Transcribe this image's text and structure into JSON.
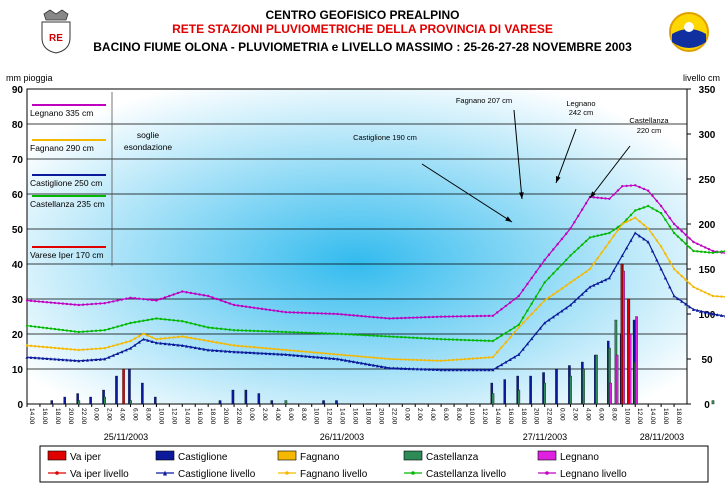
{
  "header": {
    "title": "CENTRO GEOFISICO PREALPINO",
    "subtitle": "RETE STAZIONI PLUVIOMETRICHE DELLA PROVINCIA DI VARESE",
    "subtitle2": "BACINO FIUME OLONA - PLUVIOMETRIA e LIVELLO MASSIMO :  25-26-27-28 NOVEMBRE 2003",
    "logo_left_text": "RE",
    "logo_left_color": "#cc0000"
  },
  "colors": {
    "varese": "#e00000",
    "castiglione": "#0a1a9a",
    "fagnano": "#f5b800",
    "castellanza": "#00b800",
    "legnano": "#c000c0",
    "castellanza_bar": "#2e8b57",
    "legnano_bar": "#e020e0",
    "plot_bg_center": "#33bbee",
    "plot_bg_edge": "#ffffff"
  },
  "chart_data": {
    "type": "bar+line",
    "ylabel_left": "mm pioggia",
    "ylabel_right": "livello cm",
    "ylim_left": [
      0,
      90
    ],
    "ylim_right": [
      0,
      350
    ],
    "yticks_left": [
      "0",
      "10",
      "20",
      "30",
      "40",
      "50",
      "60",
      "70",
      "80",
      "90"
    ],
    "yticks_right": [
      "0",
      "50",
      "100",
      "150",
      "200",
      "250",
      "300",
      "350"
    ],
    "x_ticks": [
      "14.00",
      "16.00",
      "18.00",
      "20.00",
      "22.00",
      "0.00",
      "2.00",
      "4.00",
      "6.00",
      "8.00",
      "10.00",
      "12.00",
      "14.00",
      "16.00",
      "18.00",
      "20.00",
      "22.00",
      "0.00",
      "2.00",
      "4.00",
      "6.00",
      "8.00",
      "10.00",
      "12.00",
      "14.00",
      "16.00",
      "18.00",
      "20.00",
      "22.00",
      "0.00",
      "2.00",
      "4.00",
      "6.00",
      "8.00",
      "10.00",
      "12.00",
      "14.00",
      "16.00",
      "18.00",
      "20.00",
      "22.00",
      "0.00",
      "2.00",
      "4.00",
      "6.00",
      "8.00",
      "10.00",
      "12.00",
      "14.00",
      "16.00",
      "18.00"
    ],
    "dates": [
      "25/11/2003",
      "26/11/2003",
      "27/11/2003",
      "28/11/2003"
    ],
    "thresholds": [
      {
        "label": "Legnano 335 cm",
        "level": 335,
        "series": "legnano"
      },
      {
        "label": "Fagnano 290 cm",
        "level": 290,
        "series": "fagnano"
      },
      {
        "label": "Castiglione 250 cm",
        "level": 250,
        "series": "castiglione"
      },
      {
        "label": "Castellanza 235 cm",
        "level": 235,
        "series": "castellanza"
      },
      {
        "label": "Varese Iper 170 cm",
        "level": 170,
        "series": "varese"
      }
    ],
    "soglie_label_1": "soglie",
    "soglie_label_2": "esondazione",
    "annotations": [
      {
        "text": "Fagnano 207 cm"
      },
      {
        "text_1": "Legnano",
        "text_2": "242 cm"
      },
      {
        "text_1": "Castellanza",
        "text_2": "220 cm"
      },
      {
        "text": "Castiglione 190 cm"
      }
    ],
    "level_series": {
      "legnano": {
        "name": "Legnano livello",
        "x": [
          0,
          8,
          12,
          16,
          20,
          24,
          28,
          32,
          40,
          48,
          56,
          64,
          72,
          76,
          80,
          84,
          87,
          90,
          92,
          94,
          96,
          98,
          100,
          103,
          106,
          110,
          112,
          116,
          120,
          126,
          130,
          136,
          142,
          148,
          154,
          158
        ],
        "y": [
          115,
          110,
          112,
          118,
          115,
          125,
          120,
          110,
          102,
          100,
          95,
          97,
          98,
          120,
          160,
          195,
          230,
          228,
          242,
          243,
          237,
          220,
          200,
          180,
          170,
          165,
          155,
          145,
          135,
          125,
          120,
          110,
          105,
          100,
          92,
          90
        ]
      },
      "fagnano": {
        "name": "Fagnano livello",
        "x": [
          0,
          8,
          12,
          16,
          18,
          20,
          24,
          28,
          32,
          40,
          48,
          56,
          64,
          72,
          76,
          80,
          84,
          87,
          90,
          92,
          94,
          96,
          98,
          100,
          103,
          106,
          110,
          112,
          116,
          120,
          126,
          130,
          136,
          142,
          148,
          154,
          158
        ],
        "y": [
          65,
          60,
          62,
          70,
          78,
          72,
          75,
          70,
          65,
          60,
          55,
          50,
          48,
          52,
          85,
          115,
          135,
          150,
          180,
          200,
          207,
          195,
          175,
          150,
          130,
          120,
          118,
          110,
          100,
          95,
          90,
          85,
          80,
          78,
          75,
          70,
          65
        ]
      },
      "castellanza": {
        "name": "Castellanza livello",
        "x": [
          0,
          8,
          12,
          16,
          20,
          24,
          28,
          32,
          40,
          48,
          56,
          64,
          72,
          76,
          80,
          84,
          87,
          90,
          92,
          94,
          96,
          98,
          100,
          103,
          106,
          110,
          112,
          116,
          120,
          126,
          130,
          136,
          142,
          148,
          154,
          158
        ],
        "y": [
          87,
          80,
          82,
          90,
          95,
          92,
          85,
          82,
          80,
          78,
          75,
          72,
          70,
          88,
          135,
          165,
          185,
          190,
          200,
          215,
          220,
          212,
          190,
          170,
          168,
          172,
          150,
          135,
          130,
          125,
          118,
          115,
          112,
          110,
          108,
          105
        ]
      },
      "castiglione": {
        "name": "Castiglione livello",
        "x": [
          0,
          8,
          12,
          16,
          18,
          20,
          24,
          28,
          32,
          40,
          48,
          56,
          64,
          72,
          76,
          80,
          84,
          87,
          90,
          92,
          94,
          96,
          98,
          100,
          103,
          106,
          110,
          112,
          116,
          120,
          126,
          130,
          136,
          142,
          148,
          154,
          158
        ],
        "y": [
          52,
          48,
          50,
          62,
          72,
          68,
          65,
          60,
          58,
          55,
          50,
          40,
          38,
          38,
          55,
          90,
          110,
          130,
          140,
          165,
          190,
          180,
          150,
          120,
          105,
          100,
          95,
          92,
          88,
          85,
          80,
          75,
          72,
          70,
          65,
          62,
          60
        ]
      },
      "varese": {
        "name": "Va iper livello",
        "x": [],
        "y": []
      }
    },
    "rain_series": {
      "castiglione": {
        "name": "Castiglione",
        "x": [
          4,
          6,
          8,
          10,
          12,
          14,
          16,
          18,
          20,
          30,
          32,
          34,
          36,
          38,
          46,
          48,
          72,
          74,
          76,
          78,
          80,
          82,
          84,
          86,
          88,
          90,
          92,
          94
        ],
        "y": [
          1,
          2,
          3,
          2,
          4,
          8,
          10,
          6,
          2,
          1,
          4,
          4,
          3,
          1,
          1,
          1,
          6,
          7,
          8,
          8,
          9,
          10,
          11,
          12,
          14,
          18,
          20,
          24
        ]
      },
      "castellanza": {
        "name": "Castellanza",
        "x": [
          8,
          12,
          16,
          40,
          72,
          76,
          80,
          84,
          86,
          88,
          90,
          91,
          92,
          93,
          94,
          106,
          110,
          112,
          114
        ],
        "y": [
          1,
          2,
          1,
          1,
          3,
          4,
          6,
          8,
          10,
          14,
          16,
          24,
          40,
          30,
          12,
          1,
          2,
          3,
          4
        ]
      },
      "legnano": {
        "name": "Legnano",
        "x": [
          90,
          91,
          92,
          93,
          94
        ],
        "y": [
          6,
          14,
          38,
          20,
          25
        ]
      },
      "fagnano": {
        "name": "Fagnano",
        "x": [
          92
        ],
        "y": [
          2
        ]
      },
      "varese": {
        "name": "Va iper",
        "x": [
          15,
          92,
          93
        ],
        "y": [
          10,
          40,
          30
        ]
      }
    },
    "legend": [
      {
        "name": "Va iper",
        "type": "box",
        "series": "varese"
      },
      {
        "name": "Castiglione",
        "type": "box",
        "series": "castiglione"
      },
      {
        "name": "Fagnano",
        "type": "box",
        "series": "fagnano"
      },
      {
        "name": "Castellanza",
        "type": "box",
        "series": "castellanza"
      },
      {
        "name": "Legnano",
        "type": "box",
        "series": "legnano"
      },
      {
        "name": "Va iper livello",
        "type": "line",
        "series": "varese"
      },
      {
        "name": "Castiglione livello",
        "type": "line",
        "series": "castiglione"
      },
      {
        "name": "Fagnano livello",
        "type": "line",
        "series": "fagnano"
      },
      {
        "name": "Castellanza livello",
        "type": "line",
        "series": "castellanza"
      },
      {
        "name": "Legnano livello",
        "type": "line",
        "series": "legnano"
      }
    ]
  }
}
